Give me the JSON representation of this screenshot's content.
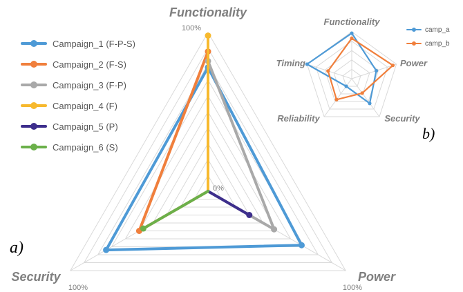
{
  "panel_labels": {
    "a": "a)",
    "b": "b)"
  },
  "colors": {
    "campaign_1": "#4e9ad6",
    "campaign_2": "#f07f3c",
    "campaign_3": "#a9a9a9",
    "campaign_4": "#f7b92e",
    "campaign_5": "#3d2e8c",
    "campaign_6": "#6bb04a",
    "camp_a": "#4e9ad6",
    "camp_b": "#f07f3c",
    "grid": "#d9d9d9",
    "axis_label": "#7f7f7f"
  },
  "chart_data": [
    {
      "panel": "a",
      "type": "radar",
      "axes": [
        "Functionality",
        "Power",
        "Security"
      ],
      "axis_max_labels": [
        "100%",
        "100%",
        "100%"
      ],
      "center_label": "0%",
      "range": [
        0,
        100
      ],
      "grid_levels": 10,
      "grid": true,
      "legend_position": "left",
      "series": [
        {
          "name": "Campaign_1 (F-P-S)",
          "values": [
            78,
            68,
            74
          ]
        },
        {
          "name": "Campaign_2 (F-S)",
          "values": [
            88,
            0,
            50
          ]
        },
        {
          "name": "Campaign_3 (F-P)",
          "values": [
            82,
            48,
            0
          ]
        },
        {
          "name": "Campaign_4 (F)",
          "values": [
            98,
            0,
            0
          ]
        },
        {
          "name": "Campaign_5 (P)",
          "values": [
            0,
            30,
            0
          ]
        },
        {
          "name": "Campaign_6 (S)",
          "values": [
            0,
            0,
            47
          ]
        }
      ]
    },
    {
      "panel": "b",
      "type": "radar",
      "axes": [
        "Functionality",
        "Power",
        "Security",
        "Reliability",
        "Timing"
      ],
      "range": [
        0,
        100
      ],
      "grid_levels": 5,
      "grid": true,
      "legend_position": "top-right",
      "series": [
        {
          "name": "camp_a",
          "values": [
            97,
            55,
            65,
            20,
            100
          ]
        },
        {
          "name": "camp_b",
          "values": [
            86,
            92,
            38,
            55,
            53
          ]
        }
      ]
    }
  ]
}
